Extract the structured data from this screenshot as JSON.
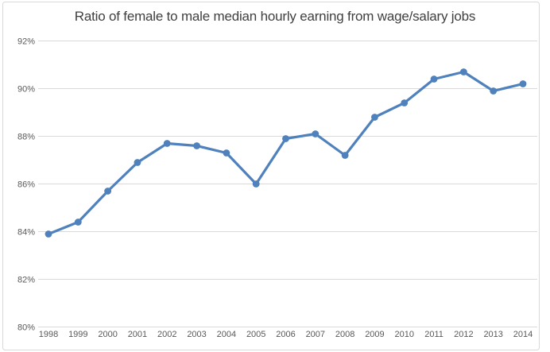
{
  "chart_data": {
    "type": "line",
    "title": "Ratio of female to male median hourly earning from wage/salary jobs",
    "categories": [
      "1998",
      "1999",
      "2000",
      "2001",
      "2002",
      "2003",
      "2004",
      "2005",
      "2006",
      "2007",
      "2008",
      "2009",
      "2010",
      "2011",
      "2012",
      "2013",
      "2014"
    ],
    "values": [
      83.9,
      84.4,
      85.7,
      86.9,
      87.7,
      87.6,
      87.3,
      86.0,
      87.9,
      88.1,
      87.2,
      88.8,
      89.4,
      90.4,
      90.7,
      89.9,
      90.2
    ],
    "xlabel": "",
    "ylabel": "",
    "ylim": [
      80,
      92
    ],
    "ytick_step": 2,
    "ytick_labels": [
      "80%",
      "82%",
      "84%",
      "86%",
      "88%",
      "90%",
      "92%"
    ],
    "grid": true,
    "legend": "none",
    "marker": "circle",
    "colors": {
      "line": "#4F81BD",
      "marker": "#4F81BD",
      "gridline": "#D9D9D9",
      "frame_border": "#D9D9D9",
      "axis_label": "#595959",
      "title": "#404040",
      "background": "#FFFFFF"
    }
  }
}
